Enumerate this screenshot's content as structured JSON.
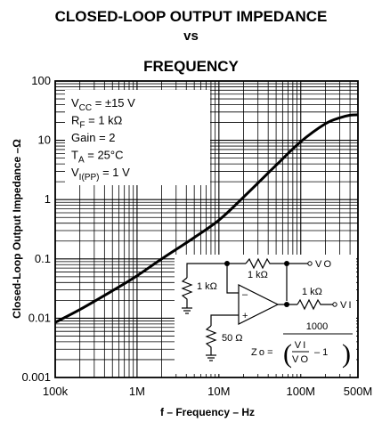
{
  "chart_data": {
    "type": "line",
    "title_lines": [
      "CLOSED-LOOP OUTPUT IMPEDANCE",
      "vs",
      "FREQUENCY"
    ],
    "xlabel": "f – Frequency – Hz",
    "ylabel": "Closed-Loop Output Impedance –Ω",
    "x_scale": "log",
    "y_scale": "log",
    "xlim": [
      100000,
      500000000
    ],
    "ylim": [
      0.001,
      100
    ],
    "grid": true,
    "x_ticks": [
      {
        "value": 100000,
        "label": "100k"
      },
      {
        "value": 1000000,
        "label": "1M"
      },
      {
        "value": 10000000,
        "label": "10M"
      },
      {
        "value": 100000000,
        "label": "100M"
      },
      {
        "value": 500000000,
        "label": "500M"
      }
    ],
    "y_ticks": [
      {
        "value": 100,
        "label": "100"
      },
      {
        "value": 10,
        "label": "10"
      },
      {
        "value": 1,
        "label": "1"
      },
      {
        "value": 0.1,
        "label": "0.1"
      },
      {
        "value": 0.01,
        "label": "0.01"
      },
      {
        "value": 0.001,
        "label": "0.001"
      }
    ],
    "series": [
      {
        "x": [
          100000,
          200000,
          500000,
          1000000,
          2000000,
          5000000,
          10000000,
          20000000,
          50000000,
          100000000,
          200000000,
          300000000,
          400000000,
          500000000
        ],
        "y": [
          0.0085,
          0.014,
          0.029,
          0.052,
          0.1,
          0.23,
          0.45,
          1.1,
          3.8,
          9.5,
          19,
          24,
          26.5,
          27
        ]
      }
    ],
    "conditions": [
      "V CC = ±15 V",
      "R F = 1 kΩ",
      "Gain = 2",
      "T A = 25°C",
      "V I(PP) = 1 V"
    ],
    "schematic_labels": {
      "rf": "1 kΩ",
      "rg": "1 kΩ",
      "rout": "1 kΩ",
      "rin": "50 Ω",
      "vo": "V O",
      "vi": "V I",
      "minus": "–",
      "plus": "+",
      "formula_lhs": "Z o =",
      "formula_num": "1000",
      "formula_frac_num": "V I",
      "formula_frac_den": "V O",
      "formula_minus_one": "– 1"
    }
  }
}
